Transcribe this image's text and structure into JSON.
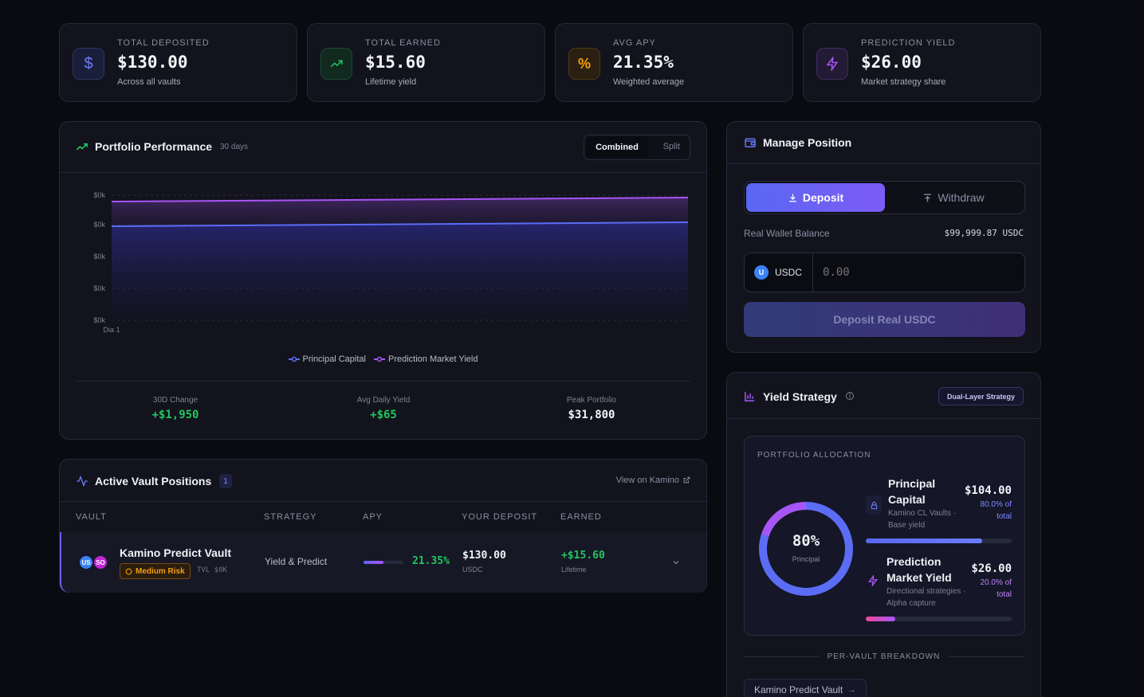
{
  "stats": [
    {
      "label": "TOTAL DEPOSITED",
      "value": "$130.00",
      "sub": "Across all vaults",
      "icon": "dollar-icon",
      "color": "#6b7cff"
    },
    {
      "label": "TOTAL EARNED",
      "value": "$15.60",
      "sub": "Lifetime yield",
      "icon": "trending-up-icon",
      "color": "#22c55e"
    },
    {
      "label": "AVG APY",
      "value": "21.35%",
      "sub": "Weighted average",
      "icon": "percent-icon",
      "color": "#f59e0b"
    },
    {
      "label": "PREDICTION YIELD",
      "value": "$26.00",
      "sub": "Market strategy share",
      "icon": "zap-icon",
      "color": "#a855f7"
    }
  ],
  "performance": {
    "title": "Portfolio Performance",
    "period": "30 days",
    "toggle": {
      "active": "Combined",
      "inactive": "Split"
    },
    "y_ticks": [
      "$0k",
      "$0k",
      "$0k",
      "$0k",
      "$0k"
    ],
    "x_tick": "Dia 1",
    "legend": [
      "Principal Capital",
      "Prediction Market Yield"
    ],
    "kpis": [
      {
        "label": "30D Change",
        "value": "+$1,950",
        "color": "#22c55e"
      },
      {
        "label": "Avg Daily Yield",
        "value": "+$65",
        "color": "#22c55e"
      },
      {
        "label": "Peak Portfolio",
        "value": "$31,800",
        "color": "#f3f4f8"
      }
    ]
  },
  "chart_data": {
    "type": "area",
    "x": [
      "Dia 1"
    ],
    "series": [
      {
        "name": "Principal Capital",
        "color": "#5b6cf5"
      },
      {
        "name": "Prediction Market Yield",
        "color": "#a855f7"
      }
    ],
    "grid": true,
    "legend": "bottom"
  },
  "vaults": {
    "title": "Active Vault Positions",
    "count": "1",
    "link": "View on Kamino",
    "columns": [
      "VAULT",
      "STRATEGY",
      "APY",
      "YOUR DEPOSIT",
      "EARNED"
    ],
    "rows": [
      {
        "name": "Kamino Predict Vault",
        "token_a": "US",
        "token_b": "SO",
        "risk": "Medium Risk",
        "tvl": "TVL $0K",
        "strategy": "Yield & Predict",
        "apy": "21.35%",
        "apy_fill": 0.5,
        "deposit": "$130.00",
        "deposit_unit": "USDC",
        "earned": "+$15.60",
        "earned_sub": "Lifetime"
      }
    ]
  },
  "manage": {
    "title": "Manage Position",
    "deposit_tab": "Deposit",
    "withdraw_tab": "Withdraw",
    "balance_label": "Real Wallet Balance",
    "balance_value": "$99,999.87 USDC",
    "token_badge": "U",
    "token": "USDC",
    "amount_placeholder": "0.00",
    "button": "Deposit Real USDC"
  },
  "strategy": {
    "title": "Yield Strategy",
    "badge": "Dual-Layer Strategy",
    "alloc_title": "PORTFOLIO ALLOCATION",
    "donut_value": "80%",
    "donut_label": "Principal",
    "principal": {
      "name_line1": "Principal",
      "name_line2": "Capital",
      "desc_line1": "Kamino CL Vaults ·",
      "desc_line2": "Base yield",
      "value": "$104.00",
      "pct_line1": "80.0% of",
      "pct_line2": "total",
      "fill": 0.8
    },
    "prediction": {
      "name_line1": "Prediction",
      "name_line2": "Market Yield",
      "desc_line1": "Directional strategies ·",
      "desc_line2": "Alpha capture",
      "value": "$26.00",
      "pct_line1": "20.0% of",
      "pct_line2": "total",
      "fill": 0.2
    },
    "breakdown_title": "PER-VAULT BREAKDOWN",
    "breakdown_item": "Kamino Predict Vault"
  }
}
